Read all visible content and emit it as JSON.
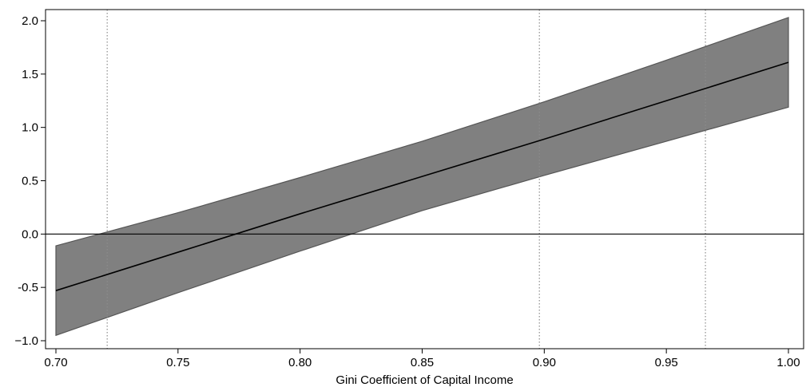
{
  "chart_data": {
    "type": "line",
    "title": "",
    "xlabel": "Gini Coefficient of Capital Income",
    "ylabel": "",
    "xlim": [
      0.7,
      1.0
    ],
    "ylim": [
      -1.0,
      2.0
    ],
    "xticks": [
      0.7,
      0.75,
      0.8,
      0.85,
      0.9,
      0.95,
      1.0
    ],
    "xtick_labels": [
      "0.70",
      "0.75",
      "0.80",
      "0.85",
      "0.90",
      "0.95",
      "1.00"
    ],
    "yticks": [
      -1.0,
      -0.5,
      0.0,
      0.5,
      1.0,
      1.5,
      2.0
    ],
    "ytick_labels": [
      "−1.0",
      "-0.5",
      "0.0",
      "0.5",
      "1.0",
      "1.5",
      "2.0"
    ],
    "grid": false,
    "reference_hline": 0.0,
    "reference_vlines": [
      0.721,
      0.898,
      0.966
    ],
    "series": [
      {
        "role": "estimate",
        "x": [
          0.7,
          0.75,
          0.8,
          0.85,
          0.9,
          0.95,
          1.0
        ],
        "y": [
          -0.53,
          -0.17,
          0.19,
          0.54,
          0.89,
          1.25,
          1.61
        ]
      }
    ],
    "band": {
      "x": [
        0.7,
        0.75,
        0.8,
        0.85,
        0.9,
        0.95,
        1.0
      ],
      "lower": [
        -0.95,
        -0.55,
        -0.16,
        0.22,
        0.55,
        0.87,
        1.19
      ],
      "upper": [
        -0.11,
        0.2,
        0.53,
        0.87,
        1.24,
        1.63,
        2.03
      ]
    },
    "colors": {
      "band_fill": "#808080",
      "band_edge": "#555555",
      "line": "#000000",
      "reference": "#000000",
      "vline": "#8c8c8c"
    }
  }
}
